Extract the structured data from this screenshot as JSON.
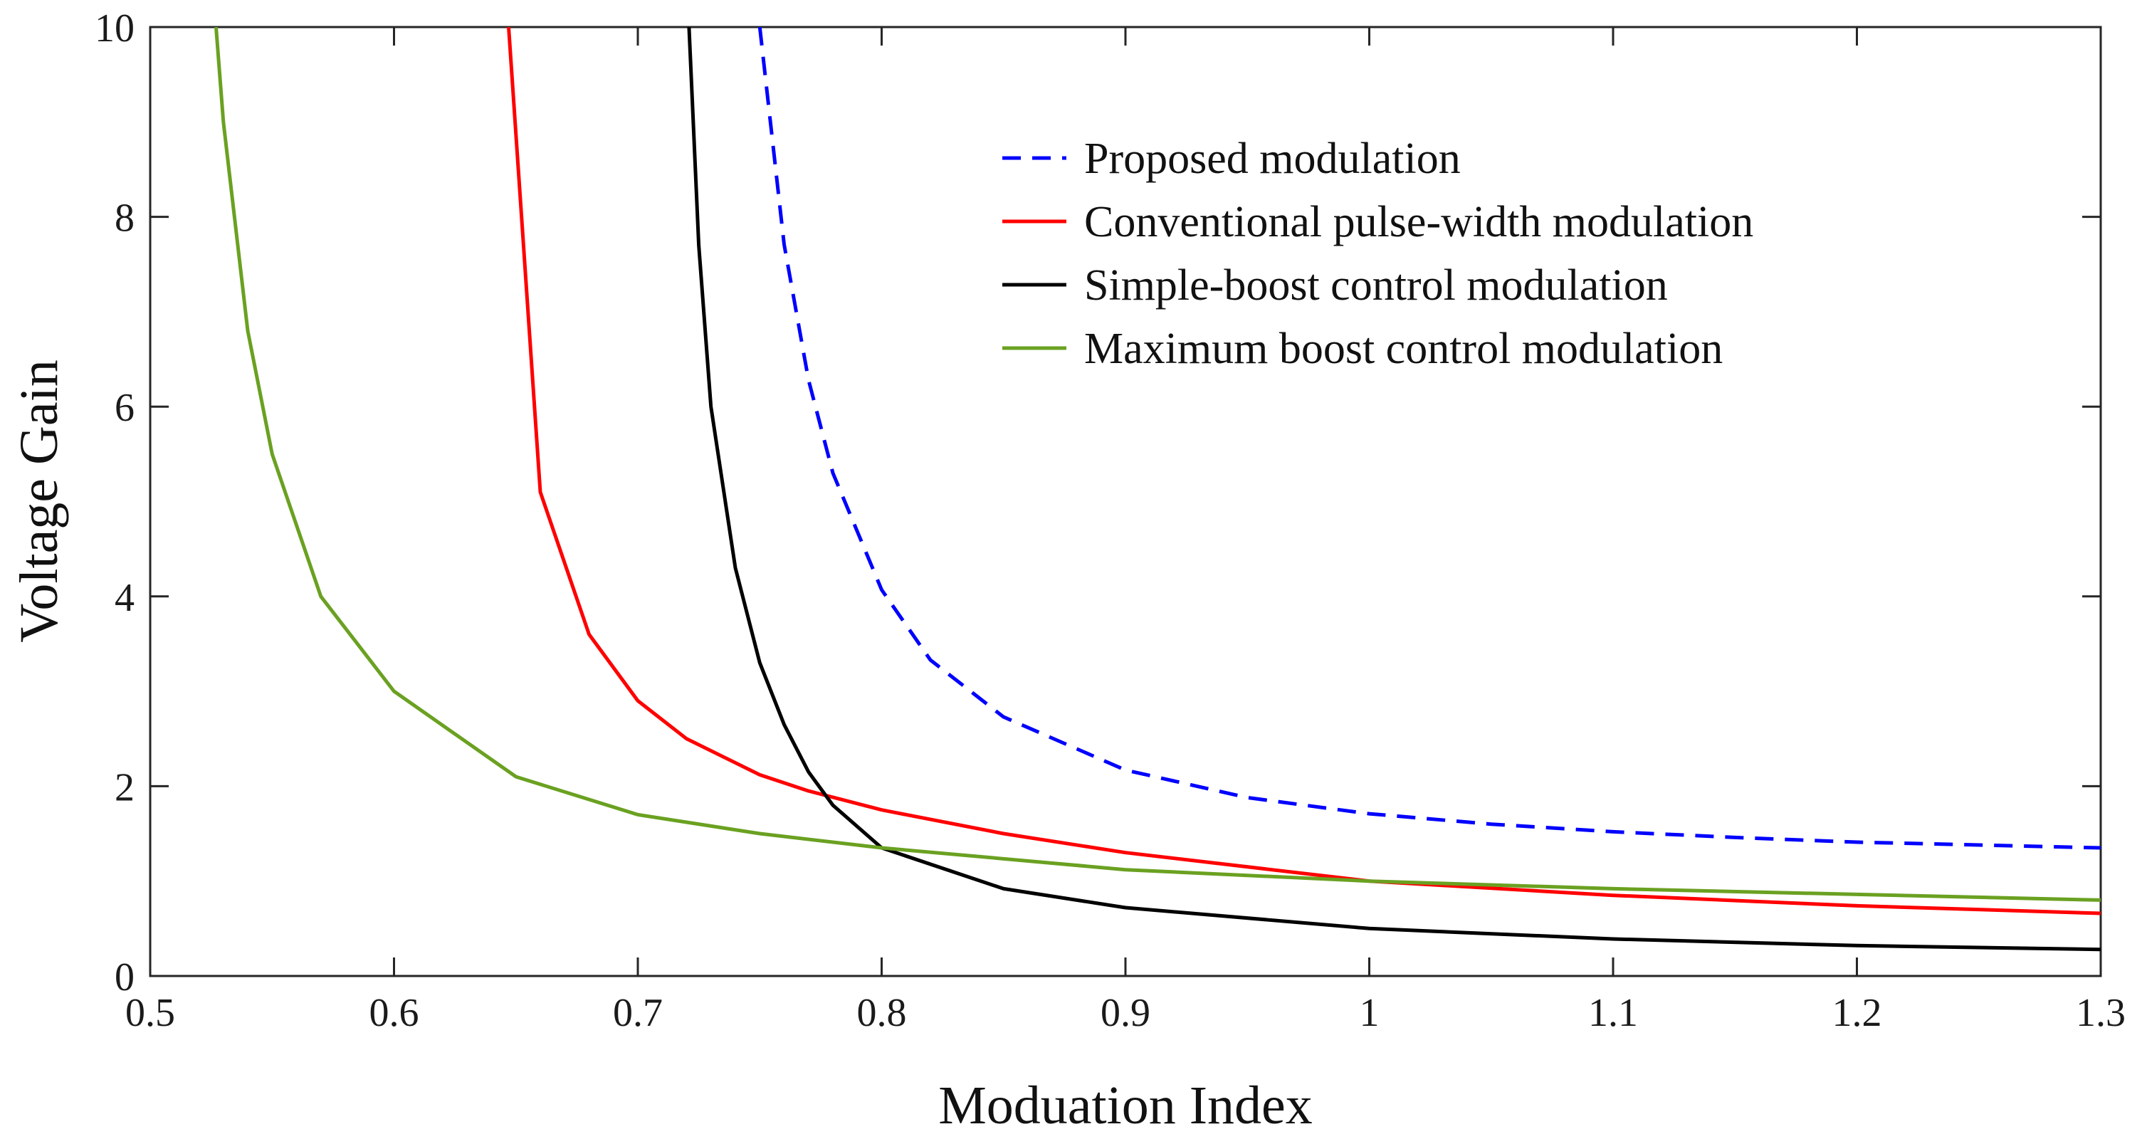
{
  "chart_data": {
    "type": "line",
    "title": "",
    "xlabel": "Moduation Index",
    "ylabel": "Voltage Gain",
    "xlim": [
      0.5,
      1.3
    ],
    "ylim": [
      0,
      10
    ],
    "xticks": [
      0.5,
      0.6,
      0.7,
      0.8,
      0.9,
      1,
      1.1,
      1.2,
      1.3
    ],
    "yticks": [
      0,
      2,
      4,
      6,
      8,
      10
    ],
    "xtick_labels": [
      "0.5",
      "0.6",
      "0.7",
      "0.8",
      "0.9",
      "1",
      "1.1",
      "1.2",
      "1.3"
    ],
    "ytick_labels": [
      "0",
      "2",
      "4",
      "6",
      "8",
      "10"
    ],
    "grid": false,
    "legend_position": "top-right",
    "series": [
      {
        "name": "Proposed modulation",
        "color": "#0000ff",
        "dash": "dashed",
        "x": [
          0.75,
          0.76,
          0.77,
          0.78,
          0.8,
          0.82,
          0.85,
          0.9,
          0.95,
          1.0,
          1.05,
          1.1,
          1.15,
          1.2,
          1.25,
          1.3
        ],
        "y": [
          10.0,
          7.71,
          6.28,
          5.3,
          4.07,
          3.33,
          2.73,
          2.17,
          1.88,
          1.71,
          1.6,
          1.52,
          1.46,
          1.41,
          1.38,
          1.35
        ]
      },
      {
        "name": "Conventional pulse-width modulation",
        "color": "#ff0000",
        "dash": "solid",
        "x": [
          0.647,
          0.66,
          0.68,
          0.7,
          0.72,
          0.75,
          0.77,
          0.8,
          0.85,
          0.9,
          1.0,
          1.1,
          1.2,
          1.3
        ],
        "y": [
          10.0,
          5.1,
          3.6,
          2.9,
          2.5,
          2.12,
          1.95,
          1.75,
          1.5,
          1.3,
          1.0,
          0.85,
          0.74,
          0.66
        ]
      },
      {
        "name": "Simple-boost control modulation",
        "color": "#000000",
        "dash": "solid",
        "x": [
          0.721,
          0.725,
          0.73,
          0.74,
          0.75,
          0.76,
          0.77,
          0.78,
          0.8,
          0.85,
          0.9,
          1.0,
          1.1,
          1.2,
          1.3
        ],
        "y": [
          10.0,
          7.7,
          6.0,
          4.3,
          3.3,
          2.65,
          2.15,
          1.8,
          1.35,
          0.92,
          0.72,
          0.5,
          0.39,
          0.32,
          0.28
        ]
      },
      {
        "name": "Maximum boost control modulation",
        "color": "#6aa121",
        "dash": "solid",
        "x": [
          0.527,
          0.53,
          0.54,
          0.55,
          0.57,
          0.6,
          0.65,
          0.7,
          0.75,
          0.8,
          0.9,
          1.0,
          1.1,
          1.2,
          1.3
        ],
        "y": [
          10.0,
          9.0,
          6.8,
          5.5,
          4.0,
          3.0,
          2.1,
          1.7,
          1.5,
          1.35,
          1.12,
          1.0,
          0.92,
          0.86,
          0.8
        ]
      }
    ]
  }
}
